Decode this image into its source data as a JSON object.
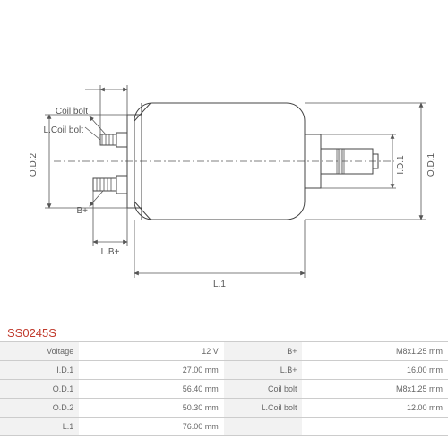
{
  "part_number": "SS0245S",
  "labels": {
    "coil_bolt": "Coil bolt",
    "l_coil_bolt": "L.Coil bolt",
    "b_plus": "B+",
    "lb_plus": "L.B+",
    "od2": "O.D.2",
    "od1": "O.D.1",
    "id1": "I.D.1",
    "l1": "L.1"
  },
  "specs_left": [
    {
      "label": "Voltage",
      "value": "12 V"
    },
    {
      "label": "I.D.1",
      "value": "27.00 mm"
    },
    {
      "label": "O.D.1",
      "value": "56.40 mm"
    },
    {
      "label": "O.D.2",
      "value": "50.30 mm"
    },
    {
      "label": "L.1",
      "value": "76.00 mm"
    }
  ],
  "specs_right": [
    {
      "label": "B+",
      "value": "M8x1.25 mm"
    },
    {
      "label": "L.B+",
      "value": "16.00 mm"
    },
    {
      "label": "Coil bolt",
      "value": "M8x1.25 mm"
    },
    {
      "label": "L.Coil bolt",
      "value": "12.00 mm"
    }
  ],
  "colors": {
    "line": "#555555",
    "outline": "#444444",
    "accent": "#c0392b",
    "table_border": "#cccccc",
    "table_label_bg": "#f2f2f2",
    "text": "#666666"
  }
}
